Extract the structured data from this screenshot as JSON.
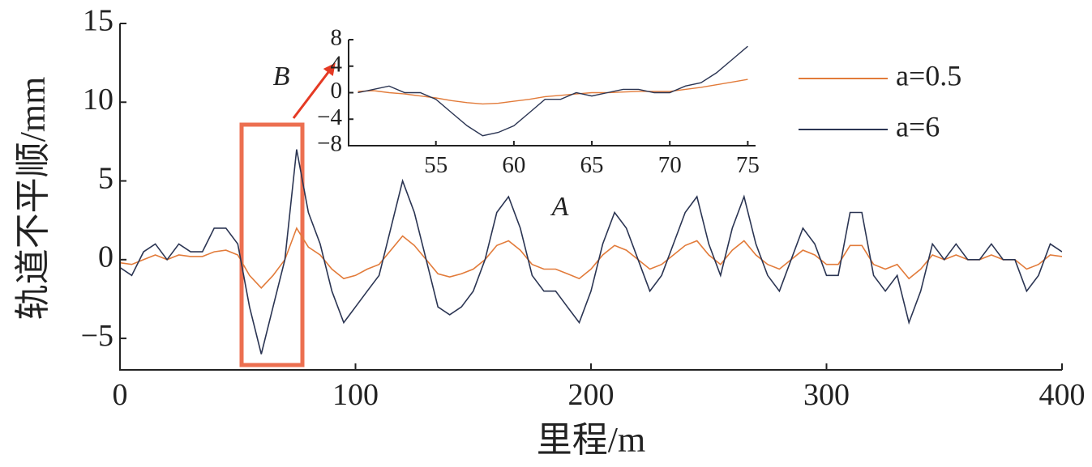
{
  "chart_data": [
    {
      "type": "line",
      "title": null,
      "xlabel": "里程/m",
      "ylabel": "轨道不平顺/mm",
      "annotations": [
        "B",
        "A"
      ],
      "x": [
        0,
        5,
        10,
        15,
        20,
        25,
        30,
        35,
        40,
        45,
        50,
        55,
        60,
        65,
        70,
        75,
        80,
        85,
        90,
        95,
        100,
        105,
        110,
        115,
        120,
        125,
        130,
        135,
        140,
        145,
        150,
        155,
        160,
        165,
        170,
        175,
        180,
        185,
        190,
        195,
        200,
        205,
        210,
        215,
        220,
        225,
        230,
        235,
        240,
        245,
        250,
        255,
        260,
        265,
        270,
        275,
        280,
        285,
        290,
        295,
        300,
        305,
        310,
        315,
        320,
        325,
        330,
        335,
        340,
        345,
        350,
        355,
        360,
        365,
        370,
        375,
        380,
        385,
        390,
        395,
        400
      ],
      "series": [
        {
          "name": "a=0.5",
          "color": "#e27b3a",
          "values": [
            -0.2,
            -0.3,
            0,
            0.3,
            0,
            0.3,
            0.2,
            0.2,
            0.5,
            0.6,
            0.3,
            -1,
            -1.8,
            -1,
            0,
            2,
            0.8,
            0.3,
            -0.6,
            -1.2,
            -1,
            -0.6,
            -0.3,
            0.6,
            1.5,
            0.9,
            0,
            -0.9,
            -1.1,
            -0.9,
            -0.6,
            0,
            0.9,
            1.2,
            0.6,
            -0.3,
            -0.6,
            -0.6,
            -0.9,
            -1.2,
            -0.6,
            0.3,
            0.9,
            0.6,
            0,
            -0.6,
            -0.3,
            0.3,
            0.9,
            1.2,
            0.3,
            -0.3,
            0.6,
            1.2,
            0.3,
            -0.3,
            -0.6,
            0,
            0.6,
            0.3,
            -0.3,
            -0.3,
            0.9,
            0.9,
            -0.3,
            -0.6,
            -0.3,
            -1.2,
            -0.6,
            0.3,
            0,
            0.3,
            0,
            0,
            0.3,
            0,
            0,
            -0.6,
            -0.3,
            0.3,
            0.2
          ]
        },
        {
          "name": "a=6",
          "color": "#2b3553",
          "values": [
            -0.5,
            -1,
            0.5,
            1,
            0,
            1,
            0.5,
            0.5,
            2,
            2,
            1,
            -3,
            -6,
            -3,
            0,
            7,
            3,
            1,
            -2,
            -4,
            -3,
            -2,
            -1,
            2,
            5,
            3,
            0,
            -3,
            -3.5,
            -3,
            -2,
            0,
            3,
            4,
            2,
            -1,
            -2,
            -2,
            -3,
            -4,
            -2,
            1,
            3,
            2,
            0,
            -2,
            -1,
            1,
            3,
            4,
            1,
            -1,
            2,
            4,
            1,
            -1,
            -2,
            0,
            2,
            1,
            -1,
            -1,
            3,
            3,
            -1,
            -2,
            -1,
            -4,
            -2,
            1,
            0,
            1,
            0,
            0,
            1,
            0,
            0,
            -2,
            -1,
            1,
            0.5
          ]
        }
      ],
      "xlim": [
        0,
        400
      ],
      "xticks": [
        0,
        100,
        200,
        300,
        400
      ],
      "ylim": [
        -7,
        15
      ],
      "yticks": [
        {
          "value": -5,
          "label": "−5"
        },
        0,
        5,
        10,
        15
      ]
    },
    {
      "type": "line",
      "x": [
        50,
        51,
        52,
        53,
        54,
        55,
        56,
        57,
        58,
        59,
        60,
        61,
        62,
        63,
        64,
        65,
        66,
        67,
        68,
        69,
        70,
        71,
        72,
        73,
        74,
        75
      ],
      "series": [
        {
          "color": "#e27b3a",
          "values": [
            0.2,
            0.3,
            0,
            -0.2,
            -0.5,
            -0.8,
            -1.2,
            -1.5,
            -1.7,
            -1.6,
            -1.3,
            -1,
            -0.6,
            -0.4,
            -0.2,
            0,
            0,
            0.1,
            0.2,
            0.2,
            0.2,
            0.5,
            0.8,
            1.2,
            1.6,
            2
          ]
        },
        {
          "color": "#2b3553",
          "values": [
            0,
            0.5,
            1,
            0,
            0,
            -1,
            -3,
            -5,
            -6.5,
            -6,
            -5,
            -3,
            -1,
            -1,
            0,
            -0.5,
            0,
            0.5,
            0.5,
            0,
            0,
            1,
            1.5,
            3,
            5,
            7
          ]
        }
      ],
      "xlim": [
        49.4,
        75.5
      ],
      "xticks": [
        55,
        60,
        65,
        70,
        75
      ],
      "ylim": [
        -8,
        8
      ],
      "yticks": [
        {
          "value": -8,
          "label": "−8"
        },
        {
          "value": -4,
          "label": "−4"
        },
        0,
        4,
        8
      ]
    }
  ]
}
